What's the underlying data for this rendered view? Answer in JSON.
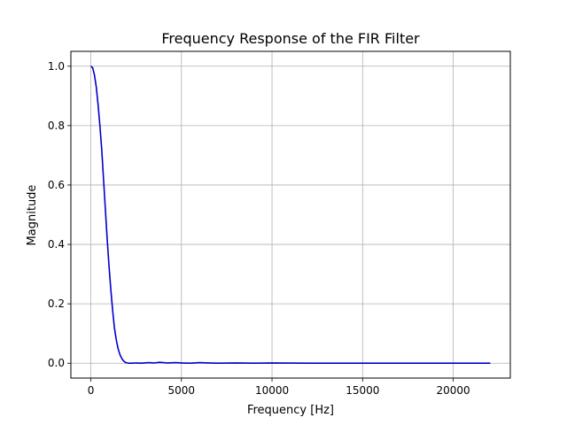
{
  "chart_data": {
    "type": "line",
    "title": "Frequency Response of the FIR Filter",
    "xlabel": "Frequency [Hz]",
    "ylabel": "Magnitude",
    "xlim": [
      -1102,
      23152
    ],
    "ylim": [
      -0.05,
      1.05
    ],
    "xticks": [
      0,
      5000,
      10000,
      15000,
      20000
    ],
    "xtick_labels": [
      "0",
      "5000",
      "10000",
      "15000",
      "20000"
    ],
    "yticks": [
      0.0,
      0.2,
      0.4,
      0.6,
      0.8,
      1.0
    ],
    "ytick_labels": [
      "0.0",
      "0.2",
      "0.4",
      "0.6",
      "0.8",
      "1.0"
    ],
    "grid": true,
    "legend": "none",
    "series": [
      {
        "color": "#0000cc",
        "x": [
          0,
          100,
          200,
          300,
          400,
          500,
          600,
          700,
          800,
          900,
          1000,
          1100,
          1200,
          1300,
          1400,
          1500,
          1600,
          1700,
          1800,
          1900,
          2000,
          2100,
          2200,
          2300,
          2500,
          2800,
          3200,
          3500,
          3800,
          4200,
          4700,
          5000,
          5500,
          6000,
          6500,
          7000,
          8000,
          9000,
          10000,
          12000,
          14000,
          16000,
          18000,
          20000,
          22050
        ],
        "y": [
          1.0,
          0.995,
          0.97,
          0.93,
          0.87,
          0.8,
          0.72,
          0.62,
          0.52,
          0.42,
          0.33,
          0.25,
          0.18,
          0.12,
          0.08,
          0.05,
          0.03,
          0.017,
          0.008,
          0.003,
          0.001,
          0.0,
          0.0,
          0.0,
          0.001,
          0.0,
          0.002,
          0.001,
          0.003,
          0.001,
          0.002,
          0.001,
          0.0,
          0.002,
          0.001,
          0.0,
          0.001,
          0.0,
          0.001,
          0.0,
          0.0,
          0.0,
          0.0,
          0.0,
          0.0
        ]
      }
    ]
  }
}
